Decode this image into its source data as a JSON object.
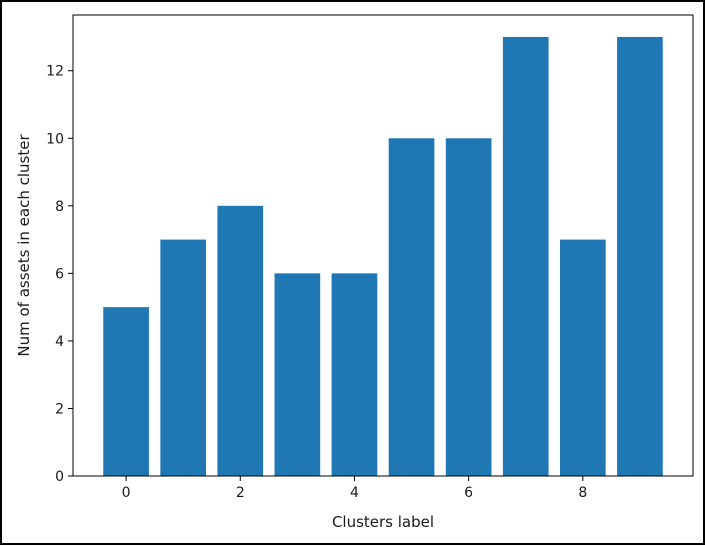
{
  "chart_data": {
    "type": "bar",
    "title": "",
    "xlabel": "Clusters label",
    "ylabel": "Num of assets in each cluster",
    "x": [
      0,
      1,
      2,
      3,
      4,
      5,
      6,
      7,
      8,
      9
    ],
    "values": [
      5,
      7,
      8,
      6,
      6,
      10,
      10,
      13,
      7,
      13
    ],
    "xticks": [
      "0",
      "2",
      "4",
      "6",
      "8"
    ],
    "yticks": [
      "0",
      "2",
      "4",
      "6",
      "8",
      "10",
      "12"
    ],
    "xlim": [
      -0.93,
      9.93
    ],
    "ylim": [
      0,
      13.65
    ],
    "bar_color": "#1f77b4",
    "grid": false,
    "legend": "none"
  }
}
